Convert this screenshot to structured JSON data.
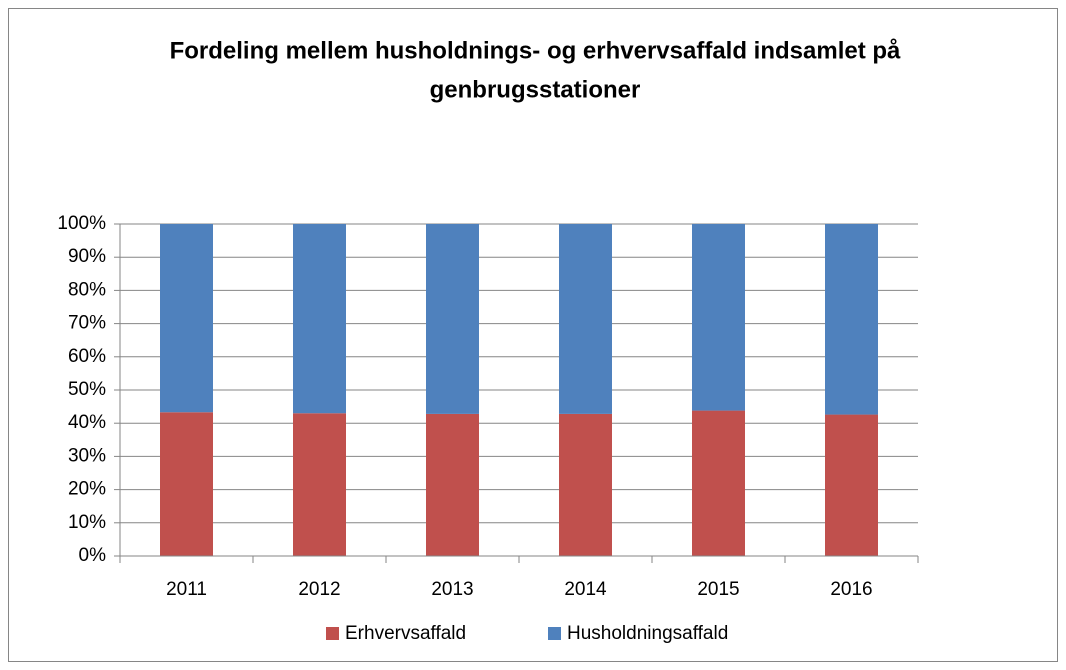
{
  "chart_data": {
    "type": "stacked_bar_percent",
    "title": [
      "Fordeling mellem husholdnings- og erhvervsaffald indsamlet på",
      "genbrugsstationer"
    ],
    "categories": [
      "2011",
      "2012",
      "2013",
      "2014",
      "2015",
      "2016"
    ],
    "series": [
      {
        "name": "Erhvervsaffald",
        "color": "#c0504d",
        "values": [
          43.3,
          43,
          42.8,
          42.8,
          43.8,
          42.6
        ]
      },
      {
        "name": "Husholdningsaffald",
        "color": "#4f81bd",
        "values": [
          56.7,
          57,
          57.2,
          57.2,
          56.2,
          57.4
        ]
      }
    ],
    "ylim": [
      0,
      100
    ],
    "yticks": [
      {
        "value": 0,
        "label": "0%"
      },
      {
        "value": 10,
        "label": "10%"
      },
      {
        "value": 20,
        "label": "20%"
      },
      {
        "value": 30,
        "label": "30%"
      },
      {
        "value": 40,
        "label": "40%"
      },
      {
        "value": 50,
        "label": "50%"
      },
      {
        "value": 60,
        "label": "60%"
      },
      {
        "value": 70,
        "label": "70%"
      },
      {
        "value": 80,
        "label": "80%"
      },
      {
        "value": 90,
        "label": "90%"
      },
      {
        "value": 100,
        "label": "100%"
      }
    ],
    "grid": true,
    "legend": "bottom"
  }
}
